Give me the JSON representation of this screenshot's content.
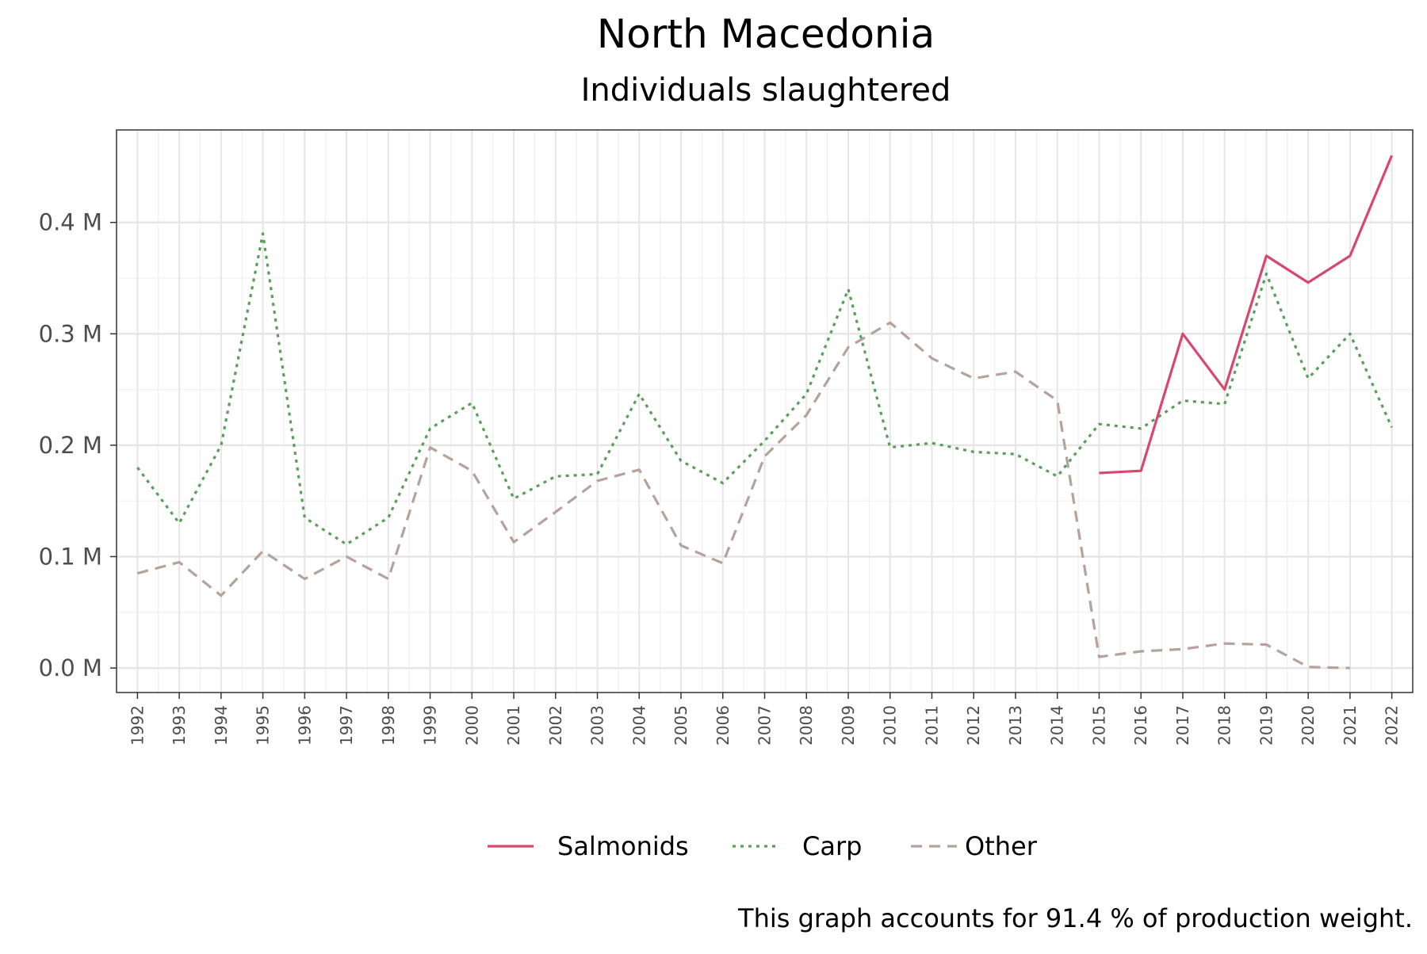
{
  "chart_data": {
    "type": "line",
    "title": "North Macedonia",
    "subtitle": "Individuals slaughtered",
    "caption": "This graph accounts for 91.4 % of production weight.",
    "xlabel": "",
    "ylabel": "",
    "x": [
      1992,
      1993,
      1994,
      1995,
      1996,
      1997,
      1998,
      1999,
      2000,
      2001,
      2002,
      2003,
      2004,
      2005,
      2006,
      2007,
      2008,
      2009,
      2010,
      2011,
      2012,
      2013,
      2014,
      2015,
      2016,
      2017,
      2018,
      2019,
      2020,
      2021,
      2022
    ],
    "x_tick_labels": [
      "1992",
      "1993",
      "1994",
      "1995",
      "1996",
      "1997",
      "1998",
      "1999",
      "2000",
      "2001",
      "2002",
      "2003",
      "2004",
      "2005",
      "2006",
      "2007",
      "2008",
      "2009",
      "2010",
      "2011",
      "2012",
      "2013",
      "2014",
      "2015",
      "2016",
      "2017",
      "2018",
      "2019",
      "2020",
      "2021",
      "2022"
    ],
    "y_ticks": [
      0,
      0.1,
      0.2,
      0.3,
      0.4
    ],
    "y_tick_labels": [
      "0.0 M",
      "0.1 M",
      "0.2 M",
      "0.3 M",
      "0.4 M"
    ],
    "xlim": [
      1991.5,
      2022.5
    ],
    "ylim": [
      -0.022,
      0.483
    ],
    "grid": true,
    "legend_position": "bottom",
    "series": [
      {
        "name": "Salmonids",
        "color": "#D9466F",
        "dash": "solid",
        "values": [
          null,
          null,
          null,
          null,
          null,
          null,
          null,
          null,
          null,
          null,
          null,
          null,
          null,
          null,
          null,
          null,
          null,
          null,
          null,
          null,
          null,
          null,
          null,
          0.175,
          0.177,
          0.3,
          0.25,
          0.37,
          0.346,
          0.37,
          0.46
        ]
      },
      {
        "name": "Carp",
        "color": "#5A9E5A",
        "dash": "dotted",
        "values": [
          0.18,
          0.13,
          0.2,
          0.39,
          0.135,
          0.111,
          0.135,
          0.215,
          0.238,
          0.152,
          0.172,
          0.174,
          0.246,
          0.186,
          0.166,
          0.204,
          0.246,
          0.34,
          0.198,
          0.202,
          0.194,
          0.192,
          0.172,
          0.219,
          0.215,
          0.24,
          0.237,
          0.354,
          0.26,
          0.3,
          0.216
        ]
      },
      {
        "name": "Other",
        "color": "#B5A39B",
        "dash": "dashed",
        "values": [
          0.085,
          0.095,
          0.065,
          0.105,
          0.08,
          0.1,
          0.08,
          0.198,
          0.177,
          0.113,
          0.14,
          0.168,
          0.178,
          0.11,
          0.094,
          0.19,
          0.227,
          0.288,
          0.31,
          0.278,
          0.26,
          0.266,
          0.24,
          0.01,
          0.015,
          0.017,
          0.022,
          0.021,
          0.001,
          0.0,
          null
        ]
      }
    ]
  }
}
